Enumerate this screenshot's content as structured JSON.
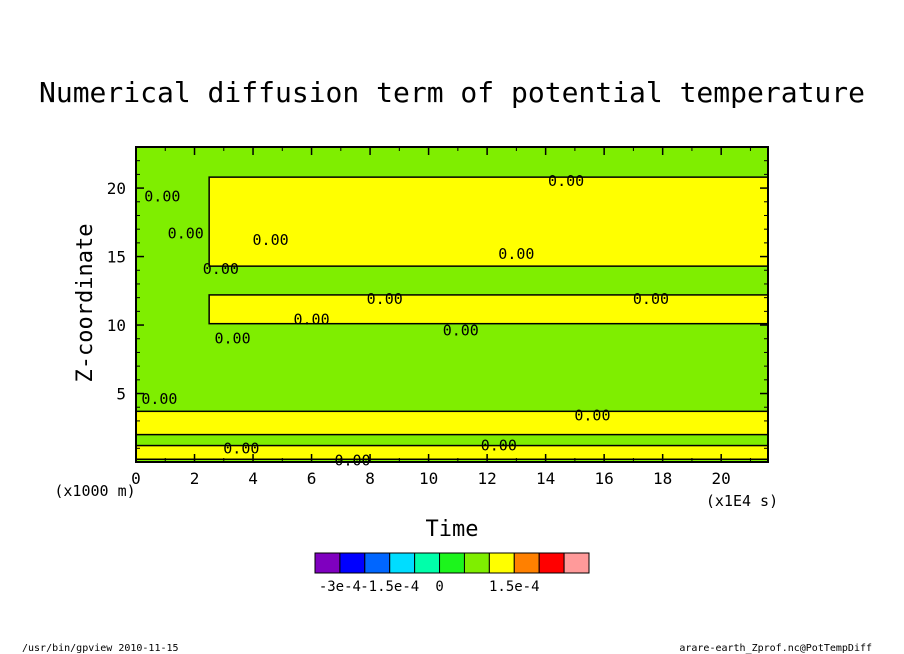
{
  "chart_data": {
    "type": "heatmap",
    "title": "Numerical diffusion term of potential temperature",
    "xlabel": "Time",
    "ylabel": "Z-coordinate",
    "x_unit": "(x1E4 s)",
    "y_unit": "(x1000 m)",
    "xlim": [
      0,
      21.6
    ],
    "ylim": [
      0,
      23
    ],
    "x_ticks": [
      "0",
      "2",
      "4",
      "6",
      "8",
      "10",
      "12",
      "14",
      "16",
      "18",
      "20"
    ],
    "y_ticks": [
      "5",
      "10",
      "15",
      "20"
    ],
    "grid": false,
    "colorscale": {
      "colors": [
        "#7f00bf",
        "#0000ff",
        "#0066ff",
        "#00ddff",
        "#00ffaa",
        "#1cf51c",
        "#7fee00",
        "#ffff00",
        "#ff8000",
        "#ff0000",
        "#ff9a9a"
      ],
      "labels": [
        "-3e-4",
        "-1.5e-4",
        "0",
        "1.5e-4"
      ],
      "label_boundaries": [
        1,
        3,
        5,
        8
      ]
    },
    "regions": [
      {
        "value": "negative",
        "color": "#7fee00",
        "x": [
          0,
          21.6
        ],
        "y": [
          0,
          23
        ]
      },
      {
        "value": "positive",
        "color": "#ffff00",
        "x": [
          2.5,
          21.6
        ],
        "y": [
          14.3,
          20.8
        ]
      },
      {
        "value": "positive",
        "color": "#ffff00",
        "x": [
          2.5,
          21.6
        ],
        "y": [
          10.1,
          12.2
        ]
      },
      {
        "value": "positive",
        "color": "#ffff00",
        "x": [
          0,
          21.6
        ],
        "y": [
          0.2,
          1.2
        ]
      },
      {
        "value": "positive",
        "color": "#ffff00",
        "x": [
          0,
          21.6
        ],
        "y": [
          2.0,
          3.7
        ]
      }
    ],
    "contour_labels": [
      {
        "text": "0.00",
        "x": 0.9,
        "y": 19.4
      },
      {
        "text": "0.00",
        "x": 1.7,
        "y": 16.7
      },
      {
        "text": "0.00",
        "x": 4.6,
        "y": 16.2
      },
      {
        "text": "0.00",
        "x": 2.9,
        "y": 14.1
      },
      {
        "text": "0.00",
        "x": 6.0,
        "y": 10.4
      },
      {
        "text": "0.00",
        "x": 3.3,
        "y": 9.0
      },
      {
        "text": "0.00",
        "x": 8.5,
        "y": 11.9
      },
      {
        "text": "0.00",
        "x": 11.1,
        "y": 9.6
      },
      {
        "text": "0.00",
        "x": 13.0,
        "y": 15.2
      },
      {
        "text": "0.00",
        "x": 14.7,
        "y": 20.5
      },
      {
        "text": "0.00",
        "x": 17.6,
        "y": 11.9
      },
      {
        "text": "0.00",
        "x": 0.8,
        "y": 4.6
      },
      {
        "text": "0.00",
        "x": 3.6,
        "y": 1.0
      },
      {
        "text": "0.00",
        "x": 7.4,
        "y": 0.1
      },
      {
        "text": "0.00",
        "x": 12.4,
        "y": 1.2
      },
      {
        "text": "0.00",
        "x": 15.6,
        "y": 3.4
      }
    ]
  },
  "footer": {
    "left": "/usr/bin/gpview  2010-11-15",
    "right": "arare-earth_Zprof.nc@PotTempDiff"
  }
}
